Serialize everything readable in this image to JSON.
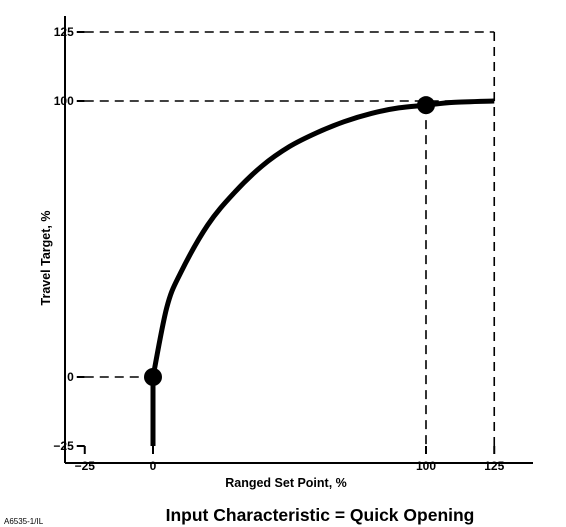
{
  "chart_data": {
    "type": "line",
    "title": "Input Characteristic = Quick Opening",
    "xlabel": "Ranged Set Point, %",
    "ylabel": "Travel Target, %",
    "figure_id": "A6535-1/IL",
    "xlim": [
      -25,
      125
    ],
    "ylim": [
      -25,
      125
    ],
    "x_ticks": [
      -25,
      0,
      100,
      125
    ],
    "y_ticks": [
      -25,
      0,
      100,
      125
    ],
    "x_tick_labels": [
      "−25",
      "0",
      "100",
      "125"
    ],
    "y_tick_labels": [
      "−25",
      "0",
      "100",
      "125"
    ],
    "grid": false,
    "series": [
      {
        "x": [
          0,
          5,
          10,
          20,
          30,
          40,
          50,
          60,
          70,
          80,
          90,
          100,
          110,
          125
        ],
        "y": [
          0,
          25.0,
          37.5,
          55.0,
          67.0,
          76.5,
          83.5,
          88.5,
          92.5,
          95.5,
          97.5,
          98.5,
          99.5,
          100
        ]
      },
      {
        "x": [
          0,
          0
        ],
        "y": [
          -25,
          0
        ]
      }
    ],
    "markers": [
      {
        "x": 0,
        "y": 0
      },
      {
        "x": 100,
        "y": 98.5
      }
    ],
    "reference_lines": [
      {
        "from": [
          -25,
          125
        ],
        "to": [
          125,
          125
        ]
      },
      {
        "from": [
          125,
          125
        ],
        "to": [
          125,
          -25
        ]
      },
      {
        "from": [
          -25,
          100
        ],
        "to": [
          125,
          100
        ]
      },
      {
        "from": [
          -25,
          0
        ],
        "to": [
          0,
          0
        ]
      },
      {
        "from": [
          100,
          98.5
        ],
        "to": [
          100,
          -25
        ]
      }
    ]
  }
}
